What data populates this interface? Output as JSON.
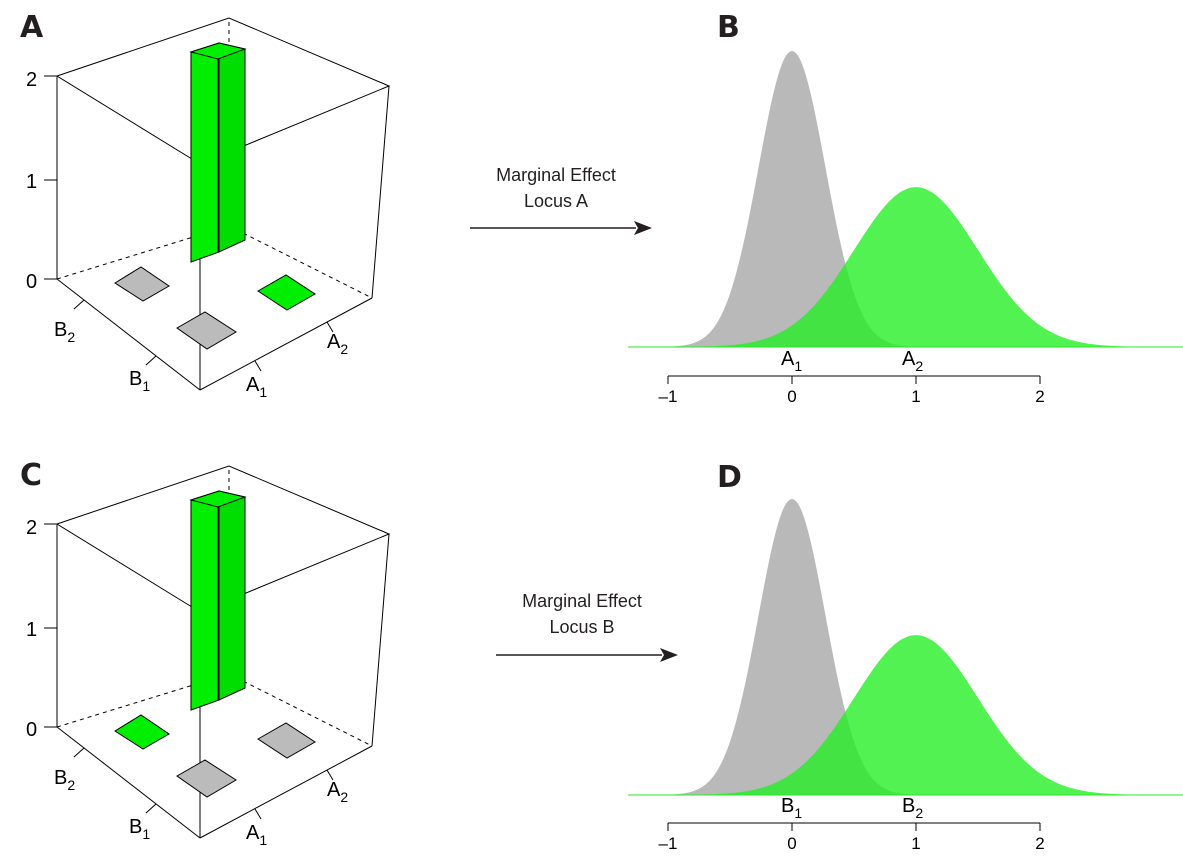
{
  "colors": {
    "green": "#00ee00",
    "gray": "#bbbbbb",
    "curve_green": "#22ee22",
    "curve_gray": "#b5b5b5",
    "ink": "#231f20"
  },
  "panels": [
    {
      "id": "A",
      "label": "A",
      "z_ticks": [
        "0",
        "1",
        "2"
      ],
      "b_levels": [
        {
          "base": "B",
          "sub": "2"
        },
        {
          "base": "B",
          "sub": "1"
        }
      ],
      "a_levels": [
        {
          "base": "A",
          "sub": "1"
        },
        {
          "base": "A",
          "sub": "2"
        }
      ],
      "cells": [
        {
          "a": "A1",
          "b": "B1",
          "height": 0,
          "color": "gray"
        },
        {
          "a": "A1",
          "b": "B2",
          "height": 0,
          "color": "gray"
        },
        {
          "a": "A2",
          "b": "B1",
          "height": 0,
          "color": "green"
        },
        {
          "a": "A2",
          "b": "B2",
          "height": 2,
          "color": "green"
        }
      ]
    },
    {
      "id": "C",
      "label": "C",
      "z_ticks": [
        "0",
        "1",
        "2"
      ],
      "b_levels": [
        {
          "base": "B",
          "sub": "2"
        },
        {
          "base": "B",
          "sub": "1"
        }
      ],
      "a_levels": [
        {
          "base": "A",
          "sub": "1"
        },
        {
          "base": "A",
          "sub": "2"
        }
      ],
      "cells": [
        {
          "a": "A1",
          "b": "B1",
          "height": 0,
          "color": "gray"
        },
        {
          "a": "A1",
          "b": "B2",
          "height": 0,
          "color": "green"
        },
        {
          "a": "A2",
          "b": "B1",
          "height": 0,
          "color": "gray"
        },
        {
          "a": "A2",
          "b": "B2",
          "height": 2,
          "color": "green"
        }
      ]
    }
  ],
  "arrows": [
    {
      "line1": "Marginal Effect",
      "line2": "Locus A"
    },
    {
      "line1": "Marginal Effect",
      "line2": "Locus B"
    }
  ],
  "density_panels": [
    {
      "id": "B",
      "label": "B",
      "xlim": [
        -1,
        3
      ],
      "ticks": [
        "–1",
        "0",
        "1",
        "2"
      ],
      "tick_values": [
        -1,
        0,
        1,
        2
      ],
      "curves": [
        {
          "name": "A1",
          "base": "A",
          "sub": "1",
          "mean": 0,
          "sd": 0.27,
          "color": "gray"
        },
        {
          "name": "A2",
          "base": "A",
          "sub": "2",
          "mean": 1,
          "sd": 0.5,
          "color": "green"
        }
      ]
    },
    {
      "id": "D",
      "label": "D",
      "xlim": [
        -1,
        3
      ],
      "ticks": [
        "–1",
        "0",
        "1",
        "2"
      ],
      "tick_values": [
        -1,
        0,
        1,
        2
      ],
      "curves": [
        {
          "name": "B1",
          "base": "B",
          "sub": "1",
          "mean": 0,
          "sd": 0.27,
          "color": "gray"
        },
        {
          "name": "B2",
          "base": "B",
          "sub": "2",
          "mean": 1,
          "sd": 0.5,
          "color": "green"
        }
      ]
    }
  ]
}
